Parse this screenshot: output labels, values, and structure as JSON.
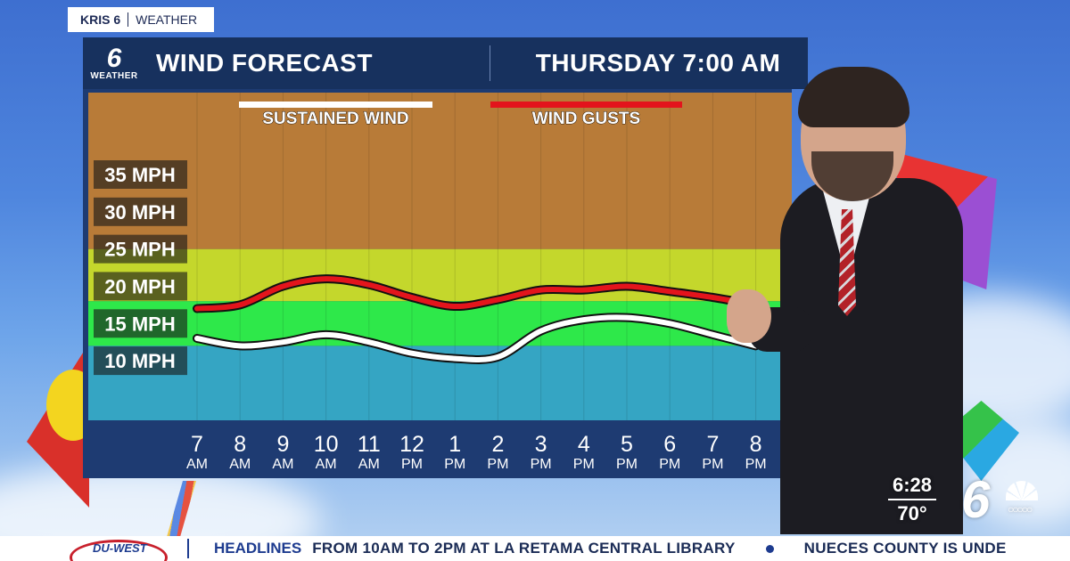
{
  "brand": {
    "station": "KRIS 6",
    "section": "WEATHER"
  },
  "header": {
    "logo_number": "6",
    "logo_caption": "WEATHER",
    "title": "WIND FORECAST",
    "time": "THURSDAY 7:00 AM"
  },
  "chart_data": {
    "type": "line",
    "x": [
      {
        "hour": "7",
        "period": "AM"
      },
      {
        "hour": "8",
        "period": "AM"
      },
      {
        "hour": "9",
        "period": "AM"
      },
      {
        "hour": "10",
        "period": "AM"
      },
      {
        "hour": "11",
        "period": "AM"
      },
      {
        "hour": "12",
        "period": "PM"
      },
      {
        "hour": "1",
        "period": "PM"
      },
      {
        "hour": "2",
        "period": "PM"
      },
      {
        "hour": "3",
        "period": "PM"
      },
      {
        "hour": "4",
        "period": "PM"
      },
      {
        "hour": "5",
        "period": "PM"
      },
      {
        "hour": "6",
        "period": "PM"
      },
      {
        "hour": "7",
        "period": "PM"
      },
      {
        "hour": "8",
        "period": "PM"
      }
    ],
    "y_ticks": [
      "35 MPH",
      "30 MPH",
      "25 MPH",
      "20 MPH",
      "15 MPH",
      "10 MPH"
    ],
    "y_tick_values": [
      35,
      30,
      25,
      20,
      15,
      10
    ],
    "ylim": [
      2,
      46
    ],
    "bands": [
      {
        "from": 2,
        "to": 12,
        "color": "#35a5c3"
      },
      {
        "from": 12,
        "to": 18,
        "color": "#2ee84a"
      },
      {
        "from": 18,
        "to": 25,
        "color": "#c4d72c"
      },
      {
        "from": 25,
        "to": 46,
        "color": "#b87b38"
      }
    ],
    "series": [
      {
        "name": "SUSTAINED WIND",
        "color": "#ffffff",
        "values": [
          13,
          12,
          12.5,
          13.5,
          12.5,
          11,
          10.3,
          10.5,
          14,
          15.5,
          15.8,
          15,
          13.5,
          12
        ]
      },
      {
        "name": "WIND GUSTS",
        "color": "#e3141c",
        "values": [
          17,
          17.5,
          20,
          21,
          20.2,
          18.5,
          17.3,
          18.2,
          19.5,
          19.5,
          20,
          19.3,
          18.5,
          17.5
        ]
      }
    ]
  },
  "overlay": {
    "time": "6:28",
    "temp": "70°",
    "network_logo": "6"
  },
  "ticker": {
    "sponsor": "DU-WEST",
    "label": "HEADLINES",
    "text_1": "FROM 10AM TO 2PM AT LA RETAMA CENTRAL LIBRARY",
    "text_2": "NUECES COUNTY IS UNDE"
  }
}
